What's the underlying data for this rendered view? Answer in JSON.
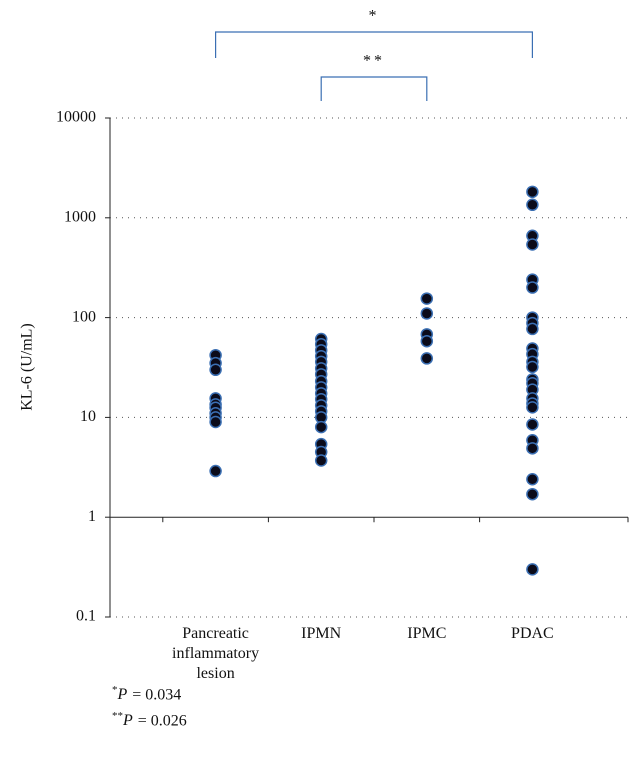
{
  "chart_data": {
    "type": "strip",
    "y_label": "KL-6 (U/mL)",
    "categories": [
      "Pancreatic\ninflammatory\nlesion",
      "IPMN",
      "IPMC",
      "PDAC"
    ],
    "values": [
      [
        42,
        35,
        30,
        15.5,
        13.5,
        12.5,
        11,
        10,
        9,
        2.9
      ],
      [
        61,
        54,
        47,
        41,
        36,
        31,
        27,
        23,
        20,
        17.4,
        15.2,
        13.2,
        11.5,
        10,
        8,
        5.4,
        4.5,
        3.7
      ],
      [
        155,
        110,
        68,
        58,
        39
      ],
      [
        1820,
        1350,
        660,
        540,
        240,
        200,
        100,
        88,
        77,
        49,
        43,
        36,
        32,
        24,
        22,
        19,
        15.5,
        13.8,
        12.6,
        8.5,
        5.9,
        4.9,
        2.4,
        1.7,
        0.3
      ]
    ],
    "color": "#0b0b1a",
    "edge_color": "#3b6fb3",
    "log_scale": true,
    "grid": true,
    "ylim": [
      0.1,
      10000
    ],
    "yticks": [
      0.1,
      1,
      10,
      100,
      1000,
      10000
    ],
    "brackets": [
      {
        "label": "*",
        "from": 0,
        "to": 3
      },
      {
        "label": "**",
        "from": 1,
        "to": 2
      }
    ],
    "footnotes": [
      {
        "marker": "*",
        "stat": "P",
        "text": "= 0.034"
      },
      {
        "marker": "**",
        "stat": "P",
        "text": "= 0.026"
      }
    ]
  }
}
